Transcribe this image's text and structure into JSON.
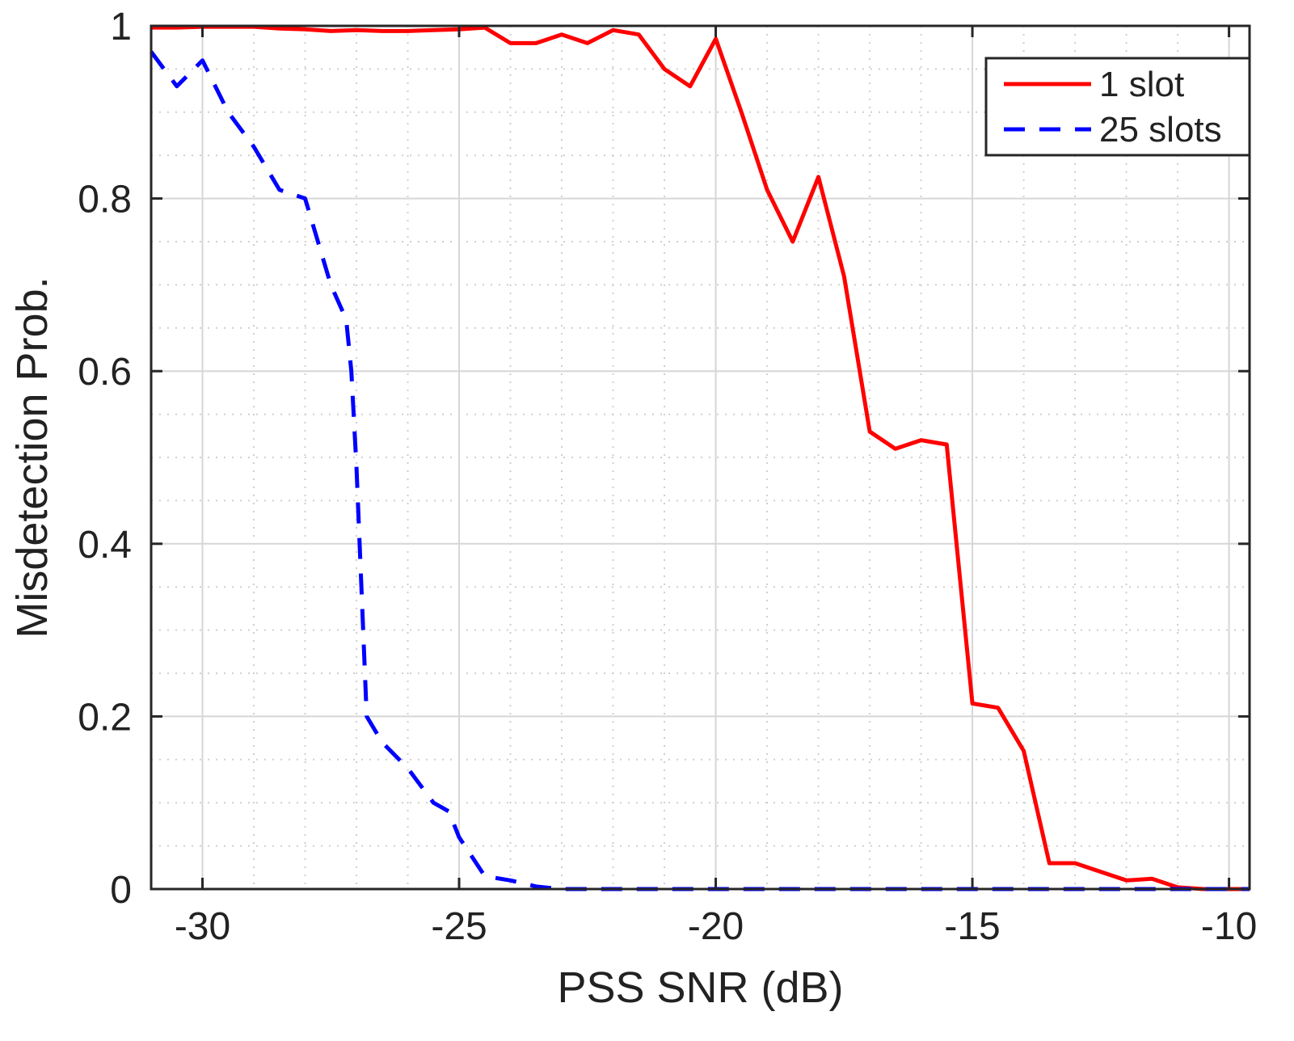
{
  "chart_data": {
    "type": "line",
    "title": "",
    "xlabel": "PSS SNR (dB)",
    "ylabel": "Misdetection Prob.",
    "xlim": [
      -31,
      -9.6
    ],
    "ylim": [
      0,
      1
    ],
    "xticks": [
      -30,
      -25,
      -20,
      -15,
      -10
    ],
    "xtick_labels": [
      "-30",
      "-25",
      "-20",
      "-15",
      "-10"
    ],
    "yticks": [
      0,
      0.2,
      0.4,
      0.6,
      0.8,
      1
    ],
    "ytick_labels": [
      "0",
      "0.2",
      "0.4",
      "0.6",
      "0.8",
      "1"
    ],
    "grid": true,
    "minor_grid": true,
    "legend_position": "top-right",
    "series": [
      {
        "name": "1 slot",
        "color": "#ff0000",
        "style": "solid",
        "x": [
          -31,
          -30.5,
          -30,
          -29.5,
          -29,
          -28.5,
          -28,
          -27.5,
          -27,
          -26.5,
          -26,
          -25.5,
          -25,
          -24.5,
          -24,
          -23.5,
          -23,
          -22.5,
          -22,
          -21.5,
          -21,
          -20.5,
          -20,
          -19.5,
          -19,
          -18.5,
          -18,
          -17.5,
          -17,
          -16.5,
          -16,
          -15.5,
          -15,
          -14.5,
          -14,
          -13.5,
          -13,
          -12.5,
          -12,
          -11.5,
          -11,
          -10.5,
          -10,
          -9.6
        ],
        "values": [
          0.998,
          0.998,
          0.999,
          0.999,
          0.999,
          0.997,
          0.996,
          0.994,
          0.995,
          0.994,
          0.994,
          0.995,
          0.996,
          0.998,
          0.98,
          0.98,
          0.99,
          0.98,
          0.995,
          0.99,
          0.95,
          0.93,
          0.985,
          0.9,
          0.81,
          0.75,
          0.825,
          0.71,
          0.53,
          0.51,
          0.52,
          0.515,
          0.215,
          0.21,
          0.16,
          0.03,
          0.03,
          0.02,
          0.01,
          0.012,
          0.002,
          0.0,
          0.0,
          0.0
        ]
      },
      {
        "name": "25 slots",
        "color": "#0000ff",
        "style": "dashed",
        "x": [
          -31,
          -30.5,
          -30,
          -29.5,
          -29,
          -28.5,
          -28,
          -27.5,
          -27.2,
          -27.1,
          -27,
          -26.8,
          -26.5,
          -26,
          -25.5,
          -25.2,
          -25,
          -24.5,
          -24,
          -23.5,
          -23,
          -22,
          -21,
          -20,
          -19,
          -18,
          -17,
          -16,
          -15,
          -14,
          -13,
          -12,
          -11,
          -10,
          -9.6
        ],
        "values": [
          0.97,
          0.93,
          0.96,
          0.9,
          0.86,
          0.81,
          0.8,
          0.7,
          0.66,
          0.6,
          0.49,
          0.2,
          0.17,
          0.14,
          0.1,
          0.09,
          0.06,
          0.015,
          0.01,
          0.003,
          0.0,
          0.0,
          0.0,
          0.0,
          0.0,
          0.0,
          0.0,
          0.0,
          0.0,
          0.0,
          0.0,
          0.0,
          0.0,
          0.0,
          0.0
        ]
      }
    ]
  }
}
